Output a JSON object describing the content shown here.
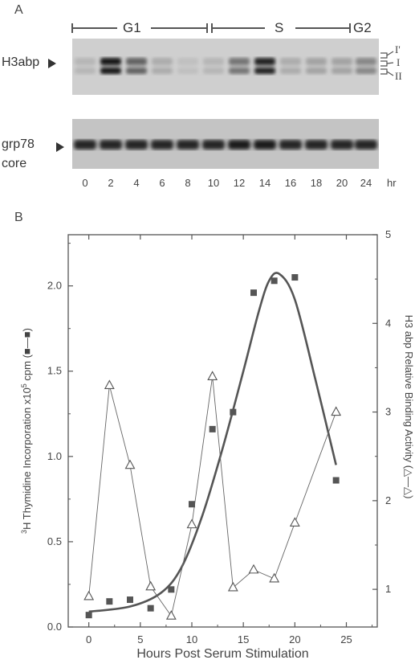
{
  "panel_a": {
    "letter": "A",
    "phases": [
      "G1",
      "S",
      "G2"
    ],
    "row_labels": {
      "top": "H3abp",
      "bottom_line1": "grp78",
      "bottom_line2": "core"
    },
    "band_labels": [
      "I'",
      "I",
      "II"
    ],
    "lanes": [
      "0",
      "2",
      "4",
      "6",
      "8",
      "10",
      "12",
      "14",
      "16",
      "18",
      "20",
      "24"
    ],
    "unit": "hr",
    "h3abp_intensity": [
      0.1,
      0.95,
      0.55,
      0.15,
      0.05,
      0.1,
      0.45,
      0.9,
      0.15,
      0.2,
      0.2,
      0.35
    ],
    "grp78_intensity": [
      0.85,
      0.85,
      0.85,
      0.85,
      0.85,
      0.85,
      0.9,
      0.9,
      0.85,
      0.85,
      0.85,
      0.85
    ]
  },
  "chart_data": {
    "letter": "B",
    "type": "scatter",
    "xlabel": "Hours Post Serum Stimulation",
    "ylabel_left_pre": "3",
    "ylabel_left_main": "H Thymidine Incorporation x10",
    "ylabel_left_exp": "5",
    "ylabel_left_post": " cpm (",
    "ylabel_left_end": ")",
    "ylabel_right": "H3 abp Relative Binding Activity (",
    "ylabel_right_end": ")",
    "xlim": [
      -2,
      28
    ],
    "xticks": [
      0,
      5,
      10,
      15,
      20,
      25
    ],
    "ylim_left": [
      0,
      2.3
    ],
    "yticks_left": [
      "0.0",
      "0.5",
      "1.0",
      "1.5",
      "2.0"
    ],
    "ylim_right": [
      0.575,
      5
    ],
    "yticks_right": [
      1,
      2,
      3,
      4,
      5
    ],
    "thymidine": {
      "x": [
        0,
        2,
        4,
        6,
        8,
        10,
        12,
        14,
        16,
        18,
        20,
        24
      ],
      "y": [
        0.07,
        0.15,
        0.16,
        0.11,
        0.22,
        0.72,
        1.16,
        1.26,
        1.96,
        2.03,
        2.05,
        0.86
      ]
    },
    "binding": {
      "x": [
        0,
        2,
        4,
        6,
        8,
        10,
        12,
        14,
        16,
        18,
        20,
        24
      ],
      "y": [
        0.92,
        3.3,
        2.4,
        1.03,
        0.7,
        1.73,
        3.4,
        1.02,
        1.22,
        1.12,
        1.75,
        3.0
      ]
    },
    "fit_curve": {
      "x": [
        0,
        4,
        7,
        9,
        11,
        13,
        15,
        16.5,
        17.5,
        18.5,
        20,
        22,
        24
      ],
      "y": [
        0.09,
        0.12,
        0.2,
        0.35,
        0.65,
        1.05,
        1.5,
        1.85,
        2.03,
        2.07,
        1.92,
        1.45,
        0.95
      ]
    }
  }
}
